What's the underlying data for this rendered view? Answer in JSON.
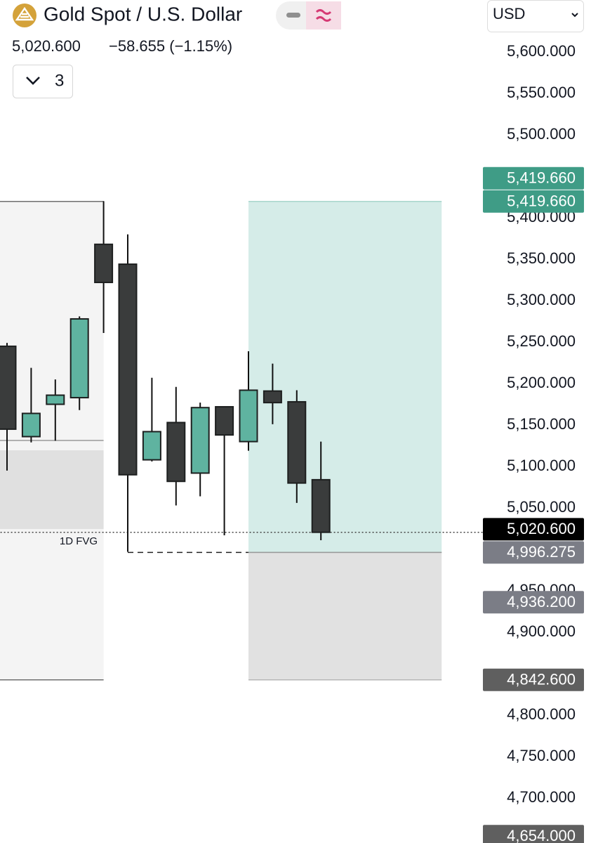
{
  "chart_data": {
    "type": "candlestick",
    "title": "Gold Spot / U.S. Dollar",
    "last_price": "5,020.600",
    "change": "−58.655 (−1.15%)",
    "currency": "USD",
    "indicator_count": 3,
    "annotation": "1D FVG",
    "open": [
      5245,
      5136,
      5175,
      5183,
      5368,
      5344,
      5108,
      5153,
      5092,
      5172,
      5130,
      5191,
      5178,
      5084
    ],
    "high": [
      5249,
      5219,
      5205,
      5281,
      5420,
      5380,
      5207,
      5196,
      5177,
      5172,
      5239,
      5224,
      5192,
      5130
    ],
    "low": [
      5095,
      5129,
      5131,
      5168,
      5261,
      4997,
      5106,
      5053,
      5064,
      5017,
      5119,
      5151,
      5056,
      5011
    ],
    "close": [
      5145,
      5164,
      5186,
      5278,
      5322,
      5090,
      5142,
      5082,
      5171,
      5138,
      5192,
      5177,
      5080,
      5020.6
    ],
    "up_color": "#5fb3a0",
    "down_color": "#3a3c3c",
    "ylim": [
      4650,
      5650
    ],
    "yticks": [
      {
        "value": 5600,
        "label": "5,600.000"
      },
      {
        "value": 5550,
        "label": "5,550.000"
      },
      {
        "value": 5500,
        "label": "5,500.000"
      },
      {
        "value": 5400,
        "label": "5,400.000"
      },
      {
        "value": 5350,
        "label": "5,350.000"
      },
      {
        "value": 5300,
        "label": "5,300.000"
      },
      {
        "value": 5250,
        "label": "5,250.000"
      },
      {
        "value": 5200,
        "label": "5,200.000"
      },
      {
        "value": 5150,
        "label": "5,150.000"
      },
      {
        "value": 5100,
        "label": "5,100.000"
      },
      {
        "value": 5050,
        "label": "5,050.000"
      },
      {
        "value": 4950,
        "label": "4,950.000"
      },
      {
        "value": 4900,
        "label": "4,900.000"
      },
      {
        "value": 4800,
        "label": "4,800.000"
      },
      {
        "value": 4750,
        "label": "4,750.000"
      },
      {
        "value": 4700,
        "label": "4,700.000"
      }
    ],
    "price_labels": [
      {
        "value": 5419.66,
        "label": "5,419.660",
        "color": "#3f9c86"
      },
      {
        "value": 5419.66,
        "label": "5,419.660",
        "color": "#3f9c86"
      },
      {
        "value": 5020.6,
        "label": "5,020.600",
        "color": "#000000"
      },
      {
        "value": 4996.275,
        "label": "4,996.275",
        "color": "#7b7d86"
      },
      {
        "value": 4936.2,
        "label": "4,936.200",
        "color": "#7b7d86"
      },
      {
        "value": 4842.6,
        "label": "4,842.600",
        "color": "#5f5f5f"
      },
      {
        "value": 4654,
        "label": "4,654.000",
        "color": "#5f5f5f"
      }
    ],
    "zones": [
      {
        "x": [
          -1,
          4
        ],
        "y": [
          5419.66,
          4842.6
        ],
        "color": "#f4f4f4",
        "border": "#6f6f6f"
      },
      {
        "x": [
          -1,
          4
        ],
        "y": [
          5119.5,
          5024.6
        ],
        "color": "#e0e0e0",
        "border": "none"
      },
      {
        "x": [
          10,
          18
        ],
        "y": [
          5419.66,
          4996.275
        ],
        "color": "#d5ece8",
        "border": "#a9d6cc"
      },
      {
        "x": [
          10,
          18
        ],
        "y": [
          4996.275,
          4842.6
        ],
        "color": "#e1e1e1",
        "border": "#b5b5b5"
      }
    ],
    "levels": [
      {
        "value": 5131.4,
        "x": [
          -1,
          4
        ],
        "style": "solid"
      },
      {
        "value": 4996.275,
        "x": [
          5,
          10
        ],
        "style": "dashed"
      },
      {
        "value": 4996.275,
        "x": [
          10,
          18
        ],
        "style": "solid"
      },
      {
        "value": 5020.6,
        "x": [
          -1,
          19.7
        ],
        "style": "dotted"
      }
    ]
  }
}
